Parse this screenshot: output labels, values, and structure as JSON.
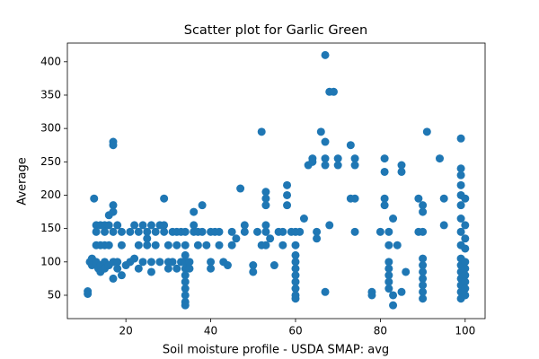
{
  "chart_data": {
    "type": "scatter",
    "title": "Scatter plot for Garlic Green",
    "xlabel": "Soil moisture profile - USDA SMAP: avg",
    "ylabel": "Average",
    "color": "#1f77b4",
    "xlim": [
      6.2,
      104.7
    ],
    "ylim": [
      15,
      428
    ],
    "xticks": [
      20,
      40,
      60,
      80,
      100
    ],
    "yticks": [
      50,
      100,
      150,
      200,
      250,
      300,
      350,
      400
    ],
    "grid": false,
    "x": [
      11,
      11,
      11.5,
      12,
      12,
      12.5,
      13,
      13,
      13,
      13,
      13.5,
      14,
      14,
      14,
      14,
      15,
      15,
      15,
      15,
      15,
      16,
      16,
      16,
      16,
      17,
      17,
      17,
      17,
      17,
      17,
      17,
      18,
      18,
      18,
      19,
      19,
      19,
      20,
      21,
      21,
      22,
      22,
      23,
      23,
      23,
      24,
      24,
      25,
      25,
      25,
      26,
      26,
      26,
      27,
      27,
      28,
      28,
      29,
      29,
      29,
      30,
      30,
      30,
      31,
      31,
      32,
      32,
      32,
      33,
      33,
      34,
      34,
      34,
      34,
      34,
      34,
      34,
      34,
      34,
      34,
      34,
      35,
      35,
      36,
      36,
      36,
      37,
      37,
      38,
      38,
      39,
      40,
      40,
      40,
      41,
      42,
      42,
      43,
      44,
      45,
      45,
      46,
      47,
      48,
      48,
      50,
      50,
      51,
      52,
      52,
      53,
      53,
      53,
      53,
      53,
      53,
      54,
      55,
      56,
      57,
      57,
      58,
      58,
      58,
      59,
      60,
      60,
      60,
      60,
      60,
      60,
      60,
      60,
      60,
      60,
      61,
      62,
      63,
      64,
      64,
      65,
      65,
      66,
      67,
      67,
      67,
      67,
      67,
      68,
      68,
      69,
      70,
      70,
      73,
      73,
      74,
      74,
      74,
      74,
      78,
      78,
      80,
      81,
      81,
      81,
      81,
      82,
      82,
      82,
      82,
      82,
      82,
      82,
      83,
      83,
      83,
      84,
      85,
      85,
      85,
      86,
      89,
      89,
      90,
      90,
      90,
      90,
      90,
      90,
      90,
      90,
      90,
      90,
      91,
      94,
      95,
      95,
      99,
      99,
      99,
      99,
      99,
      99,
      99,
      99,
      99,
      99,
      99,
      99,
      99,
      99,
      99,
      99,
      100,
      100,
      100,
      100,
      100,
      100,
      100,
      100,
      100,
      100
    ],
    "values": [
      52,
      56,
      100,
      105,
      95,
      195,
      155,
      145,
      125,
      100,
      90,
      155,
      125,
      95,
      85,
      155,
      145,
      125,
      100,
      90,
      155,
      170,
      125,
      95,
      185,
      175,
      280,
      275,
      145,
      100,
      75,
      155,
      100,
      90,
      80,
      145,
      125,
      95,
      145,
      100,
      155,
      105,
      145,
      125,
      90,
      155,
      100,
      135,
      145,
      125,
      155,
      100,
      85,
      145,
      125,
      155,
      100,
      195,
      155,
      145,
      125,
      100,
      90,
      145,
      100,
      145,
      125,
      90,
      100,
      145,
      145,
      125,
      110,
      100,
      90,
      80,
      70,
      60,
      50,
      40,
      35,
      100,
      90,
      175,
      145,
      155,
      145,
      125,
      185,
      145,
      125,
      145,
      100,
      90,
      145,
      145,
      125,
      100,
      95,
      145,
      125,
      135,
      210,
      155,
      145,
      95,
      85,
      145,
      125,
      295,
      205,
      195,
      185,
      155,
      145,
      125,
      135,
      95,
      145,
      145,
      125,
      215,
      200,
      185,
      145,
      145,
      125,
      110,
      100,
      90,
      80,
      70,
      60,
      50,
      45,
      145,
      165,
      245,
      255,
      250,
      145,
      135,
      295,
      410,
      280,
      255,
      245,
      55,
      355,
      155,
      355,
      255,
      245,
      195,
      275,
      195,
      255,
      245,
      145,
      55,
      50,
      145,
      255,
      235,
      195,
      185,
      145,
      125,
      100,
      90,
      80,
      70,
      60,
      50,
      35,
      165,
      125,
      245,
      235,
      55,
      85,
      195,
      145,
      185,
      175,
      145,
      105,
      95,
      85,
      75,
      65,
      55,
      45,
      295,
      255,
      195,
      155,
      285,
      240,
      230,
      215,
      200,
      185,
      165,
      145,
      125,
      105,
      95,
      85,
      75,
      65,
      55,
      45,
      195,
      155,
      135,
      120,
      100,
      90,
      80,
      70,
      60,
      50
    ]
  }
}
